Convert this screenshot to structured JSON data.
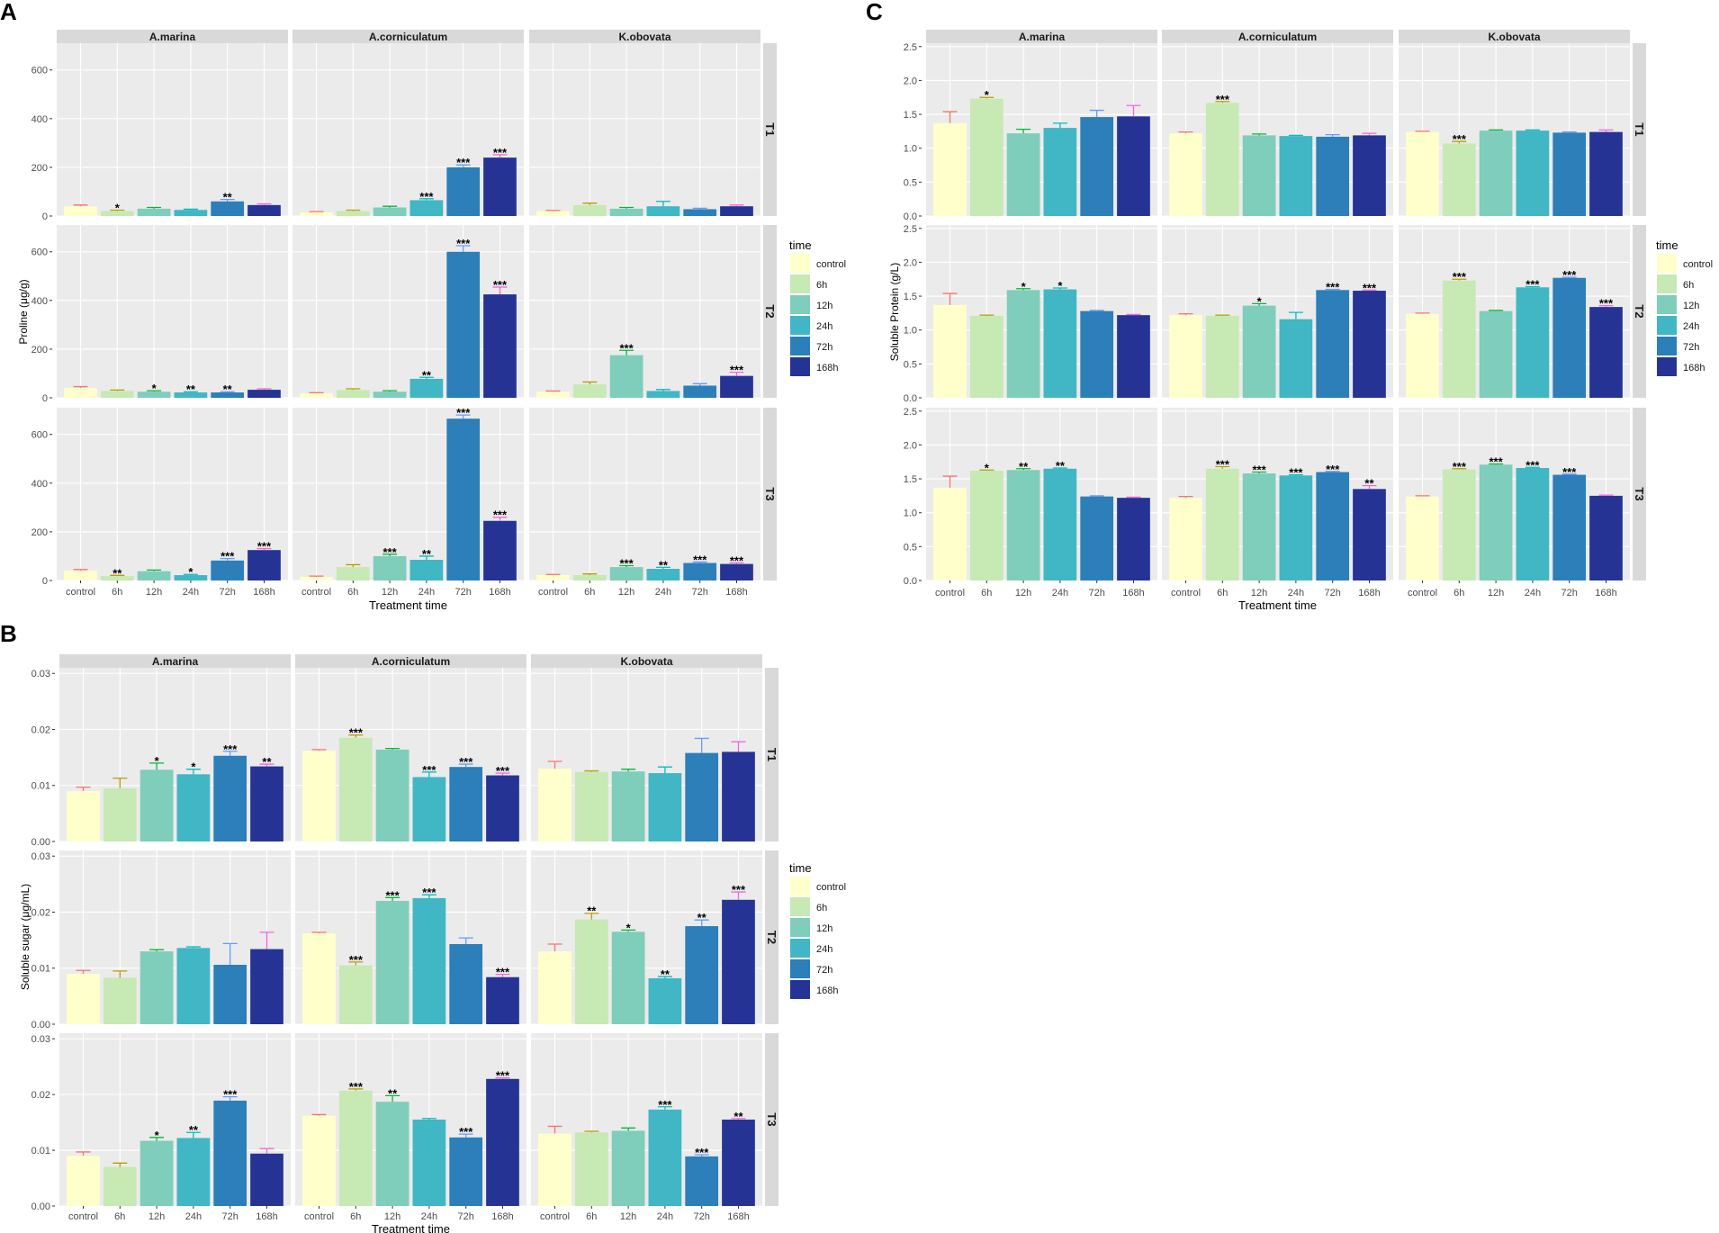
{
  "figure": {
    "strips": [
      "A.marina",
      "A.corniculatum",
      "K.obovata"
    ],
    "rows": [
      "T1",
      "T2",
      "T3"
    ],
    "categories": [
      "control",
      "6h",
      "12h",
      "24h",
      "72h",
      "168h"
    ],
    "legend_title": "time",
    "xlabel": "Treatment time",
    "colors": {
      "fills": [
        "#ffffcc",
        "#c7e9b4",
        "#7fcdbb",
        "#41b6c4",
        "#2c7fb8",
        "#253494"
      ],
      "errs": [
        "#f8766d",
        "#b79f00",
        "#00ba38",
        "#00bfc4",
        "#619cff",
        "#f564e3"
      ],
      "panel_bg": "#ebebeb",
      "strip_bg": "#d9d9d9",
      "grid": "#ffffff"
    }
  },
  "chart_data": [
    {
      "type": "bar",
      "panel": "A",
      "ylabel": "Proline (μg/g)",
      "ylim": [
        0,
        710
      ],
      "yticks": [
        0,
        200,
        400,
        600
      ],
      "ytick_labels": [
        "0",
        "200",
        "400",
        "600"
      ],
      "values": {
        "T1": {
          "A.marina": [
            40,
            20,
            30,
            25,
            60,
            45
          ],
          "A.corniculatum": [
            15,
            20,
            35,
            65,
            200,
            240
          ],
          "K.obovata": [
            20,
            45,
            30,
            40,
            28,
            40
          ]
        },
        "T2": {
          "A.marina": [
            40,
            28,
            25,
            22,
            22,
            33
          ],
          "A.corniculatum": [
            18,
            32,
            25,
            78,
            600,
            425
          ],
          "K.obovata": [
            25,
            55,
            175,
            28,
            50,
            90
          ]
        },
        "T3": {
          "A.marina": [
            40,
            18,
            38,
            22,
            82,
            125
          ],
          "A.corniculatum": [
            15,
            55,
            100,
            85,
            665,
            245
          ],
          "K.obovata": [
            22,
            22,
            55,
            48,
            72,
            68
          ]
        }
      },
      "errors": {
        "T1": {
          "A.marina": [
            5,
            4,
            5,
            3,
            8,
            5
          ],
          "A.corniculatum": [
            3,
            4,
            5,
            6,
            10,
            12
          ],
          "K.obovata": [
            3,
            8,
            5,
            20,
            4,
            5
          ]
        },
        "T2": {
          "A.marina": [
            6,
            4,
            4,
            3,
            3,
            4
          ],
          "A.corniculatum": [
            3,
            5,
            4,
            6,
            25,
            30
          ],
          "K.obovata": [
            3,
            10,
            20,
            6,
            8,
            15
          ]
        },
        "T3": {
          "A.marina": [
            5,
            3,
            5,
            3,
            8,
            6
          ],
          "A.corniculatum": [
            3,
            10,
            8,
            15,
            15,
            15
          ],
          "K.obovata": [
            3,
            5,
            6,
            6,
            4,
            5
          ]
        }
      },
      "sig": {
        "T1": {
          "A.marina": [
            "",
            "*",
            "",
            "",
            "**",
            ""
          ],
          "A.corniculatum": [
            "",
            "",
            "",
            "***",
            "***",
            "***"
          ],
          "K.obovata": [
            "",
            "",
            "",
            "",
            "",
            ""
          ]
        },
        "T2": {
          "A.marina": [
            "",
            "",
            "*",
            "**",
            "**",
            ""
          ],
          "A.corniculatum": [
            "",
            "",
            "",
            "**",
            "***",
            "***"
          ],
          "K.obovata": [
            "",
            "",
            "***",
            "",
            "",
            "***"
          ]
        },
        "T3": {
          "A.marina": [
            "",
            "**",
            "",
            "*",
            "***",
            "***"
          ],
          "A.corniculatum": [
            "",
            "",
            "***",
            "**",
            "***",
            "***"
          ],
          "K.obovata": [
            "",
            "",
            "***",
            "**",
            "***",
            "***"
          ]
        }
      }
    },
    {
      "type": "bar",
      "panel": "B",
      "ylabel": "Soluble sugar (μg/mL)",
      "ylim": [
        0,
        0.031
      ],
      "yticks": [
        0,
        0.01,
        0.02,
        0.03
      ],
      "ytick_labels": [
        "0.00",
        "0.01",
        "0.02",
        "0.03"
      ],
      "values": {
        "T1": {
          "A.marina": [
            0.009,
            0.0095,
            0.0128,
            0.012,
            0.0153,
            0.0134
          ],
          "A.corniculatum": [
            0.0162,
            0.0185,
            0.0164,
            0.0115,
            0.0133,
            0.0118
          ],
          "K.obovata": [
            0.013,
            0.0124,
            0.0125,
            0.0122,
            0.0158,
            0.016
          ]
        },
        "T2": {
          "A.marina": [
            0.009,
            0.0083,
            0.013,
            0.0136,
            0.0106,
            0.0134
          ],
          "A.corniculatum": [
            0.0162,
            0.0105,
            0.022,
            0.0225,
            0.0143,
            0.0084
          ],
          "K.obovata": [
            0.013,
            0.0187,
            0.0165,
            0.0082,
            0.0175,
            0.0222
          ]
        },
        "T3": {
          "A.marina": [
            0.009,
            0.007,
            0.0117,
            0.0122,
            0.0189,
            0.0094
          ],
          "A.corniculatum": [
            0.0162,
            0.0207,
            0.0187,
            0.0155,
            0.0123,
            0.0228
          ],
          "K.obovata": [
            0.013,
            0.0132,
            0.0135,
            0.0173,
            0.0089,
            0.0155
          ]
        }
      },
      "errors": {
        "T1": {
          "A.marina": [
            0.0007,
            0.0018,
            0.0012,
            0.0009,
            0.0008,
            0.0004
          ],
          "A.corniculatum": [
            0.0002,
            0.0005,
            0.0002,
            0.0009,
            0.0005,
            0.0004
          ],
          "K.obovata": [
            0.0013,
            0.0002,
            0.0004,
            0.0011,
            0.0026,
            0.0018
          ]
        },
        "T2": {
          "A.marina": [
            0.0006,
            0.0012,
            0.0003,
            0.0002,
            0.0038,
            0.003
          ],
          "A.corniculatum": [
            0.0002,
            0.0006,
            0.0006,
            0.0006,
            0.0011,
            0.0005
          ],
          "K.obovata": [
            0.0013,
            0.0011,
            0.0003,
            0.0003,
            0.0011,
            0.0014
          ]
        },
        "T3": {
          "A.marina": [
            0.0007,
            0.0007,
            0.0006,
            0.001,
            0.0007,
            0.0009
          ],
          "A.corniculatum": [
            0.0002,
            0.0003,
            0.0011,
            0.0002,
            0.0006,
            0.0002
          ],
          "K.obovata": [
            0.0013,
            0.0002,
            0.0005,
            0.0005,
            0.0003,
            0.0002
          ]
        }
      },
      "sig": {
        "T1": {
          "A.marina": [
            "",
            "",
            "*",
            "*",
            "***",
            "**"
          ],
          "A.corniculatum": [
            "",
            "***",
            "",
            "***",
            "***",
            "***"
          ],
          "K.obovata": [
            "",
            "",
            "",
            "",
            "",
            ""
          ]
        },
        "T2": {
          "A.marina": [
            "",
            "",
            "",
            "",
            "",
            ""
          ],
          "A.corniculatum": [
            "",
            "***",
            "***",
            "***",
            "",
            "***"
          ],
          "K.obovata": [
            "",
            "**",
            "*",
            "**",
            "**",
            "***"
          ]
        },
        "T3": {
          "A.marina": [
            "",
            "",
            "*",
            "**",
            "***",
            ""
          ],
          "A.corniculatum": [
            "",
            "***",
            "**",
            "",
            "***",
            "***"
          ],
          "K.obovata": [
            "",
            "",
            "",
            "***",
            "***",
            "**"
          ]
        }
      }
    },
    {
      "type": "bar",
      "panel": "C",
      "ylabel": "Soluble Protein (g/L)",
      "ylim": [
        0,
        2.55
      ],
      "yticks": [
        0,
        0.5,
        1,
        1.5,
        2,
        2.5
      ],
      "ytick_labels": [
        "0.0",
        "0.5",
        "1.0",
        "1.5",
        "2.0",
        "2.5"
      ],
      "values": {
        "T1": {
          "A.marina": [
            1.37,
            1.73,
            1.22,
            1.3,
            1.46,
            1.47
          ],
          "A.corniculatum": [
            1.22,
            1.67,
            1.19,
            1.18,
            1.17,
            1.19
          ],
          "K.obovata": [
            1.24,
            1.07,
            1.26,
            1.26,
            1.23,
            1.24
          ]
        },
        "T2": {
          "A.marina": [
            1.37,
            1.21,
            1.59,
            1.6,
            1.28,
            1.22
          ],
          "A.corniculatum": [
            1.22,
            1.21,
            1.36,
            1.16,
            1.59,
            1.58
          ],
          "K.obovata": [
            1.24,
            1.73,
            1.28,
            1.63,
            1.77,
            1.34
          ]
        },
        "T3": {
          "A.marina": [
            1.37,
            1.62,
            1.63,
            1.65,
            1.24,
            1.22
          ],
          "A.corniculatum": [
            1.22,
            1.65,
            1.58,
            1.55,
            1.6,
            1.35
          ],
          "K.obovata": [
            1.24,
            1.64,
            1.71,
            1.66,
            1.56,
            1.25
          ]
        }
      },
      "errors": {
        "T1": {
          "A.marina": [
            0.17,
            0.02,
            0.06,
            0.07,
            0.1,
            0.16
          ],
          "A.corniculatum": [
            0.02,
            0.02,
            0.02,
            0.01,
            0.03,
            0.03
          ],
          "K.obovata": [
            0.01,
            0.03,
            0.01,
            0.01,
            0.01,
            0.03
          ]
        },
        "T2": {
          "A.marina": [
            0.17,
            0.01,
            0.02,
            0.02,
            0.01,
            0.01
          ],
          "A.corniculatum": [
            0.02,
            0.01,
            0.03,
            0.1,
            0.01,
            0.01
          ],
          "K.obovata": [
            0.01,
            0.02,
            0.01,
            0.01,
            0.01,
            0.02
          ]
        },
        "T3": {
          "A.marina": [
            0.17,
            0.01,
            0.02,
            0.01,
            0.01,
            0.01
          ],
          "A.corniculatum": [
            0.02,
            0.03,
            0.02,
            0.01,
            0.01,
            0.05
          ],
          "K.obovata": [
            0.01,
            0.01,
            0.01,
            0.01,
            0.01,
            0.01
          ]
        }
      },
      "sig": {
        "T1": {
          "A.marina": [
            "",
            "*",
            "",
            "",
            "",
            ""
          ],
          "A.corniculatum": [
            "",
            "***",
            "",
            "",
            "",
            ""
          ],
          "K.obovata": [
            "",
            "***",
            "",
            "",
            "",
            ""
          ]
        },
        "T2": {
          "A.marina": [
            "",
            "",
            "*",
            "*",
            "",
            ""
          ],
          "A.corniculatum": [
            "",
            "",
            "*",
            "",
            "***",
            "***"
          ],
          "K.obovata": [
            "",
            "***",
            "",
            "***",
            "***",
            "***"
          ]
        },
        "T3": {
          "A.marina": [
            "",
            "*",
            "**",
            "**",
            "",
            ""
          ],
          "A.corniculatum": [
            "",
            "***",
            "***",
            "***",
            "***",
            "**"
          ],
          "K.obovata": [
            "",
            "***",
            "***",
            "***",
            "***",
            ""
          ]
        }
      }
    }
  ]
}
